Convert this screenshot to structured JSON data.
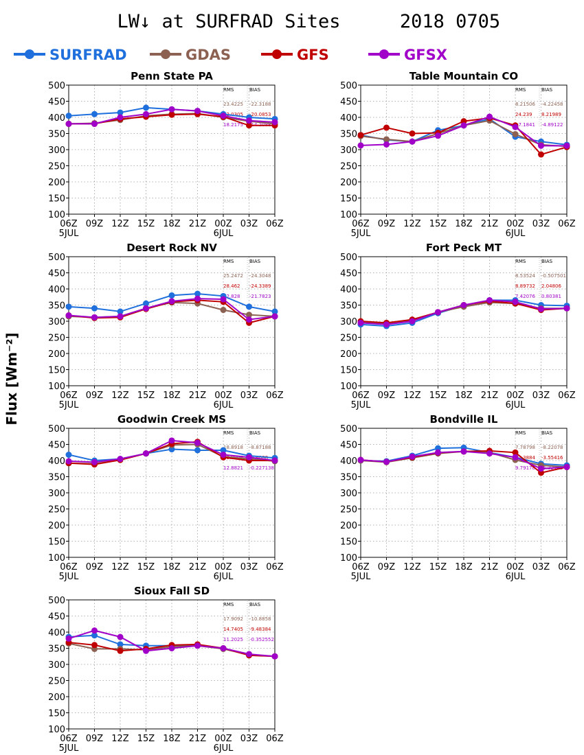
{
  "title": "LW↓ at SURFRAD Sites",
  "date": "2018 0705",
  "ylabel": "Flux [Wm⁻²]",
  "legend": [
    {
      "name": "SURFRAD",
      "color": "#1f6fdc"
    },
    {
      "name": "GDAS",
      "color": "#8c6152"
    },
    {
      "name": "GFS",
      "color": "#c00000"
    },
    {
      "name": "GFSX",
      "color": "#a000c8"
    }
  ],
  "stats_headers": {
    "rms": "RMS",
    "bias": "BIAS"
  },
  "chart_data": [
    {
      "type": "line",
      "title": "Penn State PA",
      "x": [
        "06Z",
        "09Z",
        "12Z",
        "15Z",
        "18Z",
        "21Z",
        "00Z",
        "03Z",
        "06Z"
      ],
      "date_labels": [
        {
          "index": 0,
          "text": "5JUL"
        },
        {
          "index": 6,
          "text": "6JUL"
        }
      ],
      "ylim": [
        100,
        500
      ],
      "yticks": [
        100,
        150,
        200,
        250,
        300,
        350,
        400,
        450,
        500
      ],
      "grid": true,
      "series": [
        {
          "name": "SURFRAD",
          "color": "#1f6fdc",
          "values": [
            405,
            410,
            415,
            430,
            425,
            420,
            410,
            400,
            395
          ]
        },
        {
          "name": "GDAS",
          "color": "#8c6152",
          "values": [
            380,
            382,
            392,
            405,
            410,
            412,
            400,
            388,
            380
          ]
        },
        {
          "name": "GFS",
          "color": "#c00000",
          "values": [
            380,
            380,
            395,
            402,
            408,
            410,
            402,
            375,
            375
          ]
        },
        {
          "name": "GFSX",
          "color": "#a000c8",
          "values": [
            380,
            380,
            400,
            410,
            425,
            420,
            405,
            390,
            385
          ]
        }
      ],
      "stats": [
        {
          "model": "GDAS",
          "color": "#8c6152",
          "rms": "23.4225",
          "bias": "-22.3188"
        },
        {
          "model": "GFS",
          "color": "#c00000",
          "rms": "22.0305",
          "bias": "-20.0853"
        },
        {
          "model": "GFSX",
          "color": "#a000c8",
          "rms": "18.2175",
          "bias": "-14.2088"
        }
      ]
    },
    {
      "type": "line",
      "title": "Table Mountain CO",
      "x": [
        "06Z",
        "09Z",
        "12Z",
        "15Z",
        "18Z",
        "21Z",
        "00Z",
        "03Z",
        "06Z"
      ],
      "date_labels": [
        {
          "index": 0,
          "text": "5JUL"
        },
        {
          "index": 6,
          "text": "6JUL"
        }
      ],
      "ylim": [
        100,
        500
      ],
      "yticks": [
        100,
        150,
        200,
        250,
        300,
        350,
        400,
        450,
        500
      ],
      "grid": true,
      "series": [
        {
          "name": "SURFRAD",
          "color": "#1f6fdc",
          "values": [
            345,
            330,
            325,
            360,
            375,
            395,
            340,
            325,
            315
          ]
        },
        {
          "name": "GDAS",
          "color": "#8c6152",
          "values": [
            342,
            332,
            325,
            350,
            375,
            390,
            348,
            315,
            310
          ]
        },
        {
          "name": "GFS",
          "color": "#c00000",
          "values": [
            345,
            368,
            350,
            352,
            388,
            398,
            375,
            285,
            308
          ]
        },
        {
          "name": "GFSX",
          "color": "#a000c8",
          "values": [
            313,
            316,
            325,
            343,
            375,
            402,
            370,
            312,
            312
          ]
        }
      ],
      "stats": [
        {
          "model": "GDAS",
          "color": "#8c6152",
          "rms": "8.21506",
          "bias": "-4.22458"
        },
        {
          "model": "GFS",
          "color": "#c00000",
          "rms": "24.239",
          "bias": "8.21989"
        },
        {
          "model": "GFSX",
          "color": "#a000c8",
          "rms": "17.1841",
          "bias": "-4.89122"
        }
      ]
    },
    {
      "type": "line",
      "title": "Desert Rock NV",
      "x": [
        "06Z",
        "09Z",
        "12Z",
        "15Z",
        "18Z",
        "21Z",
        "00Z",
        "03Z",
        "06Z"
      ],
      "date_labels": [
        {
          "index": 0,
          "text": "5JUL"
        },
        {
          "index": 6,
          "text": "6JUL"
        }
      ],
      "ylim": [
        100,
        500
      ],
      "yticks": [
        100,
        150,
        200,
        250,
        300,
        350,
        400,
        450,
        500
      ],
      "grid": true,
      "series": [
        {
          "name": "SURFRAD",
          "color": "#1f6fdc",
          "values": [
            345,
            340,
            330,
            355,
            380,
            385,
            378,
            345,
            330
          ]
        },
        {
          "name": "GDAS",
          "color": "#8c6152",
          "values": [
            315,
            312,
            315,
            340,
            358,
            355,
            335,
            320,
            315
          ]
        },
        {
          "name": "GFS",
          "color": "#c00000",
          "values": [
            318,
            310,
            312,
            338,
            360,
            365,
            360,
            295,
            315
          ]
        },
        {
          "name": "GFSX",
          "color": "#a000c8",
          "values": [
            318,
            312,
            315,
            340,
            362,
            370,
            368,
            305,
            315
          ]
        }
      ],
      "stats": [
        {
          "model": "GDAS",
          "color": "#8c6152",
          "rms": "25.2472",
          "bias": "-24.3048"
        },
        {
          "model": "GFS",
          "color": "#c00000",
          "rms": "28.462",
          "bias": "-24.3389"
        },
        {
          "model": "GFSX",
          "color": "#a000c8",
          "rms": "22.828",
          "bias": "-21.7823"
        }
      ]
    },
    {
      "type": "line",
      "title": "Fort Peck MT",
      "x": [
        "06Z",
        "09Z",
        "12Z",
        "15Z",
        "18Z",
        "21Z",
        "00Z",
        "03Z",
        "06Z"
      ],
      "date_labels": [
        {
          "index": 0,
          "text": "5JUL"
        },
        {
          "index": 6,
          "text": "6JUL"
        }
      ],
      "ylim": [
        100,
        500
      ],
      "yticks": [
        100,
        150,
        200,
        250,
        300,
        350,
        400,
        450,
        500
      ],
      "grid": true,
      "series": [
        {
          "name": "SURFRAD",
          "color": "#1f6fdc",
          "values": [
            290,
            285,
            295,
            325,
            348,
            365,
            365,
            350,
            348
          ]
        },
        {
          "name": "GDAS",
          "color": "#8c6152",
          "values": [
            298,
            292,
            302,
            328,
            345,
            358,
            355,
            340,
            340
          ]
        },
        {
          "name": "GFS",
          "color": "#c00000",
          "values": [
            300,
            295,
            305,
            328,
            350,
            362,
            355,
            335,
            340
          ]
        },
        {
          "name": "GFSX",
          "color": "#a000c8",
          "values": [
            295,
            290,
            300,
            328,
            350,
            365,
            360,
            338,
            340
          ]
        }
      ],
      "stats": [
        {
          "model": "GDAS",
          "color": "#8c6152",
          "rms": "8.53524",
          "bias": "-0.507501"
        },
        {
          "model": "GFS",
          "color": "#c00000",
          "rms": "8.89732",
          "bias": "2.04806"
        },
        {
          "model": "GFSX",
          "color": "#a000c8",
          "rms": "7.42076",
          "bias": "0.80381"
        }
      ]
    },
    {
      "type": "line",
      "title": "Goodwin Creek MS",
      "x": [
        "06Z",
        "09Z",
        "12Z",
        "15Z",
        "18Z",
        "21Z",
        "00Z",
        "03Z",
        "06Z"
      ],
      "date_labels": [
        {
          "index": 0,
          "text": "5JUL"
        },
        {
          "index": 6,
          "text": "6JUL"
        }
      ],
      "ylim": [
        100,
        500
      ],
      "yticks": [
        100,
        150,
        200,
        250,
        300,
        350,
        400,
        450,
        500
      ],
      "grid": true,
      "series": [
        {
          "name": "SURFRAD",
          "color": "#1f6fdc",
          "values": [
            418,
            400,
            405,
            422,
            435,
            432,
            432,
            415,
            408
          ]
        },
        {
          "name": "GDAS",
          "color": "#8c6152",
          "values": [
            392,
            390,
            402,
            422,
            448,
            450,
            412,
            405,
            398
          ]
        },
        {
          "name": "GFS",
          "color": "#c00000",
          "values": [
            392,
            388,
            402,
            422,
            452,
            458,
            410,
            400,
            400
          ]
        },
        {
          "name": "GFSX",
          "color": "#a000c8",
          "values": [
            398,
            395,
            405,
            422,
            462,
            455,
            418,
            410,
            400
          ]
        }
      ],
      "stats": [
        {
          "model": "GDAS",
          "color": "#8c6152",
          "rms": "18.8918",
          "bias": "-8.87188"
        },
        {
          "model": "GFS",
          "color": "#c00000",
          "rms": "13.8806",
          "bias": "-4.6088"
        },
        {
          "model": "GFSX",
          "color": "#a000c8",
          "rms": "12.8821",
          "bias": "-0.227138"
        }
      ]
    },
    {
      "type": "line",
      "title": "Bondville IL",
      "x": [
        "06Z",
        "09Z",
        "12Z",
        "15Z",
        "18Z",
        "21Z",
        "00Z",
        "03Z",
        "06Z"
      ],
      "date_labels": [
        {
          "index": 0,
          "text": "5JUL"
        },
        {
          "index": 6,
          "text": "6JUL"
        }
      ],
      "ylim": [
        100,
        500
      ],
      "yticks": [
        100,
        150,
        200,
        250,
        300,
        350,
        400,
        450,
        500
      ],
      "grid": true,
      "series": [
        {
          "name": "SURFRAD",
          "color": "#1f6fdc",
          "values": [
            400,
            398,
            415,
            438,
            440,
            425,
            410,
            390,
            385
          ]
        },
        {
          "name": "GDAS",
          "color": "#8c6152",
          "values": [
            400,
            395,
            408,
            422,
            428,
            425,
            402,
            385,
            380
          ]
        },
        {
          "name": "GFS",
          "color": "#c00000",
          "values": [
            402,
            396,
            410,
            424,
            428,
            430,
            425,
            362,
            380
          ]
        },
        {
          "name": "GFSX",
          "color": "#a000c8",
          "values": [
            402,
            396,
            412,
            425,
            428,
            422,
            410,
            375,
            380
          ]
        }
      ],
      "stats": [
        {
          "model": "GDAS",
          "color": "#8c6152",
          "rms": "7.78798",
          "bias": "-8.22078"
        },
        {
          "model": "GFS",
          "color": "#c00000",
          "rms": "11.3884",
          "bias": "-3.55416"
        },
        {
          "model": "GFSX",
          "color": "#a000c8",
          "rms": "9.79178",
          "bias": "-5.32783"
        }
      ]
    },
    {
      "type": "line",
      "title": "Sioux Fall SD",
      "x": [
        "06Z",
        "09Z",
        "12Z",
        "15Z",
        "18Z",
        "21Z",
        "00Z",
        "03Z",
        "06Z"
      ],
      "date_labels": [
        {
          "index": 0,
          "text": "5JUL"
        },
        {
          "index": 6,
          "text": "6JUL"
        }
      ],
      "ylim": [
        100,
        500
      ],
      "yticks": [
        100,
        150,
        200,
        250,
        300,
        350,
        400,
        450,
        500
      ],
      "grid": true,
      "series": [
        {
          "name": "SURFRAD",
          "color": "#1f6fdc",
          "values": [
            385,
            390,
            362,
            358,
            358,
            360,
            350,
            330,
            325
          ]
        },
        {
          "name": "GDAS",
          "color": "#8c6152",
          "values": [
            365,
            348,
            348,
            345,
            355,
            358,
            348,
            330,
            325
          ]
        },
        {
          "name": "GFS",
          "color": "#c00000",
          "values": [
            368,
            360,
            342,
            348,
            360,
            362,
            350,
            328,
            325
          ]
        },
        {
          "name": "GFSX",
          "color": "#a000c8",
          "values": [
            380,
            405,
            385,
            342,
            350,
            358,
            350,
            332,
            325
          ]
        }
      ],
      "stats": [
        {
          "model": "GDAS",
          "color": "#8c6152",
          "rms": "17.9092",
          "bias": "-10.8858"
        },
        {
          "model": "GFS",
          "color": "#c00000",
          "rms": "14.7405",
          "bias": "-9.48384"
        },
        {
          "model": "GFSX",
          "color": "#a000c8",
          "rms": "11.2025",
          "bias": "-0.352552"
        }
      ]
    }
  ]
}
